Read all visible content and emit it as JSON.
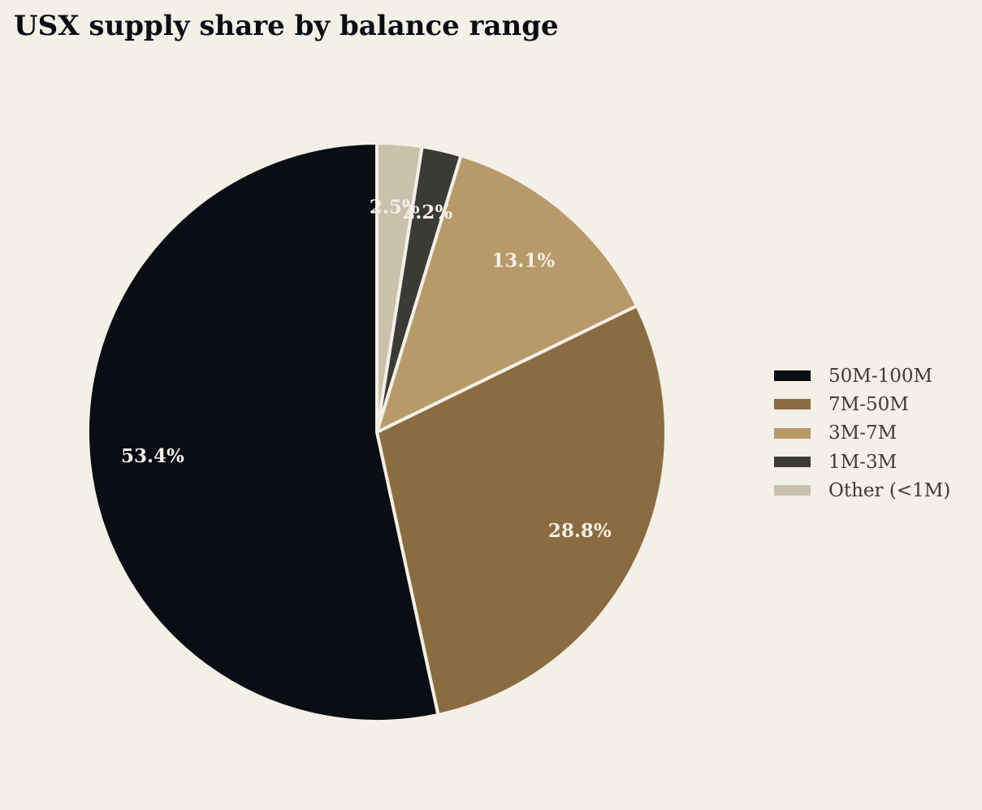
{
  "chart_data": {
    "type": "pie",
    "title": "USX supply share by balance range",
    "start_angle_deg": 90,
    "direction": "clockwise",
    "slices": [
      {
        "label": "Other (<1M)",
        "value": 2.5,
        "display": "2.5%",
        "color": "#c9c1ac"
      },
      {
        "label": "1M-3M",
        "value": 2.2,
        "display": "2.2%",
        "color": "#3b3a36"
      },
      {
        "label": "3M-7M",
        "value": 13.1,
        "display": "13.1%",
        "color": "#b8996a"
      },
      {
        "label": "7M-50M",
        "value": 28.8,
        "display": "28.8%",
        "color": "#8b6c41"
      },
      {
        "label": "50M-100M",
        "value": 53.4,
        "display": "53.4%",
        "color": "#0a0d14"
      }
    ],
    "legend": {
      "placement": "right",
      "order": [
        "50M-100M",
        "7M-50M",
        "3M-7M",
        "1M-3M",
        "Other (<1M)"
      ]
    }
  },
  "colors": {
    "background": "#f3f0e7",
    "slice_edge": "#f3f0e7",
    "title_text": "#0a0d14",
    "legend_text": "#3b3a36",
    "label_text": "#f3f0e7"
  }
}
